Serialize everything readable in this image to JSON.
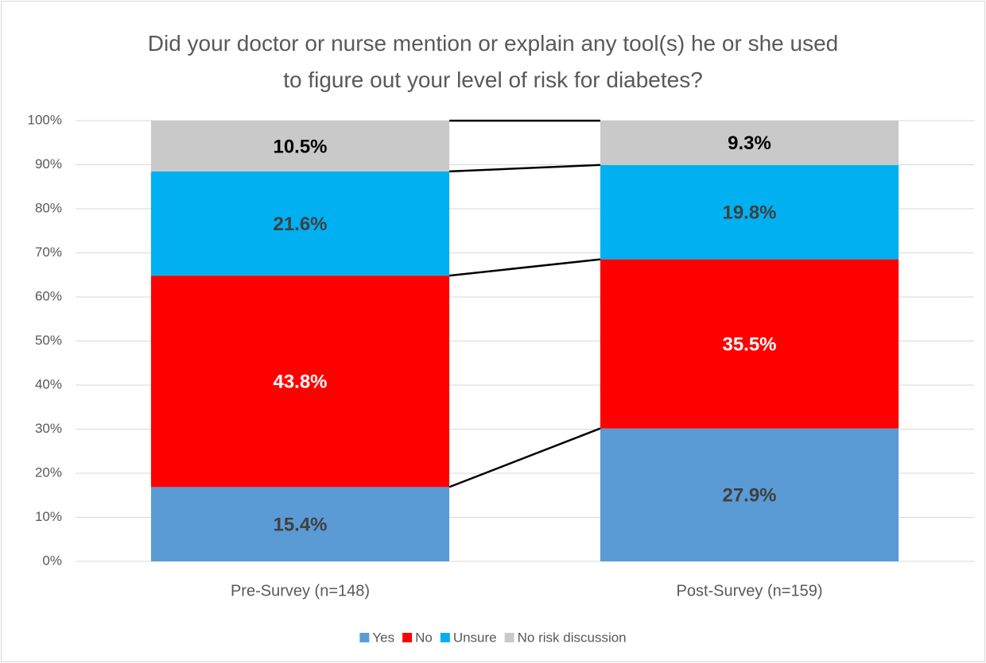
{
  "chart_data": {
    "type": "bar",
    "stacking": "percent",
    "title": "Did your doctor or nurse mention or explain any tool(s) he or she used to figure out your level of risk for diabetes?",
    "categories": [
      "Pre-Survey (n=148)",
      "Post-Survey (n=159)"
    ],
    "series": [
      {
        "name": "Yes",
        "color": "#5b9bd5",
        "label_color": "#404040",
        "values": [
          15.4,
          27.9
        ],
        "value_labels": [
          "15.4%",
          "27.9%"
        ]
      },
      {
        "name": "No",
        "color": "#ff0000",
        "label_color": "#ffffff",
        "values": [
          43.8,
          35.5
        ],
        "value_labels": [
          "43.8%",
          "35.5%"
        ]
      },
      {
        "name": "Unsure",
        "color": "#00b0f0",
        "label_color": "#404040",
        "values": [
          21.6,
          19.8
        ],
        "value_labels": [
          "21.6%",
          "19.8%"
        ]
      },
      {
        "name": "No risk discussion",
        "color": "#c9c9c9",
        "label_color": "#000000",
        "values": [
          10.5,
          9.3
        ],
        "value_labels": [
          "10.5%",
          "9.3%"
        ]
      }
    ],
    "ylim": [
      0,
      100
    ],
    "yticks": [
      {
        "value": 0,
        "label": "0%"
      },
      {
        "value": 10,
        "label": "10%"
      },
      {
        "value": 20,
        "label": "20%"
      },
      {
        "value": 30,
        "label": "30%"
      },
      {
        "value": 40,
        "label": "40%"
      },
      {
        "value": 50,
        "label": "50%"
      },
      {
        "value": 60,
        "label": "60%"
      },
      {
        "value": 70,
        "label": "70%"
      },
      {
        "value": 80,
        "label": "80%"
      },
      {
        "value": 90,
        "label": "90%"
      },
      {
        "value": 100,
        "label": "100%"
      }
    ],
    "grid": true,
    "series_lines": true,
    "legend": "bottom"
  }
}
